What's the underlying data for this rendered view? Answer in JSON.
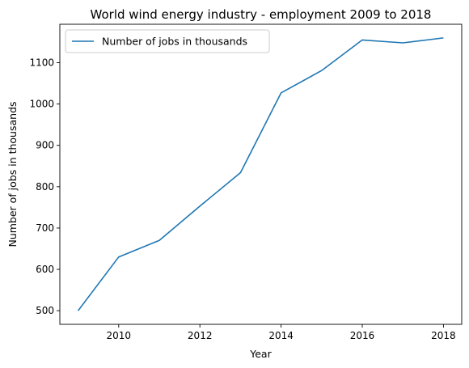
{
  "chart_data": {
    "type": "line",
    "title": "World wind energy industry - employment 2009 to 2018",
    "xlabel": "Year",
    "ylabel": "Number of jobs in thousands",
    "x": [
      2009,
      2010,
      2011,
      2012,
      2013,
      2014,
      2015,
      2016,
      2017,
      2018
    ],
    "series": [
      {
        "name": "Number of jobs in thousands",
        "color": "#1f77b4",
        "values": [
          500,
          630,
          670,
          753,
          834,
          1027,
          1081,
          1155,
          1148,
          1160
        ]
      }
    ],
    "xlim": [
      2008.55,
      2018.45
    ],
    "ylim": [
      467,
      1193
    ],
    "xticks": [
      2010,
      2012,
      2014,
      2016,
      2018
    ],
    "yticks": [
      500,
      600,
      700,
      800,
      900,
      1000,
      1100
    ],
    "grid": false,
    "legend_position": "top-left"
  }
}
